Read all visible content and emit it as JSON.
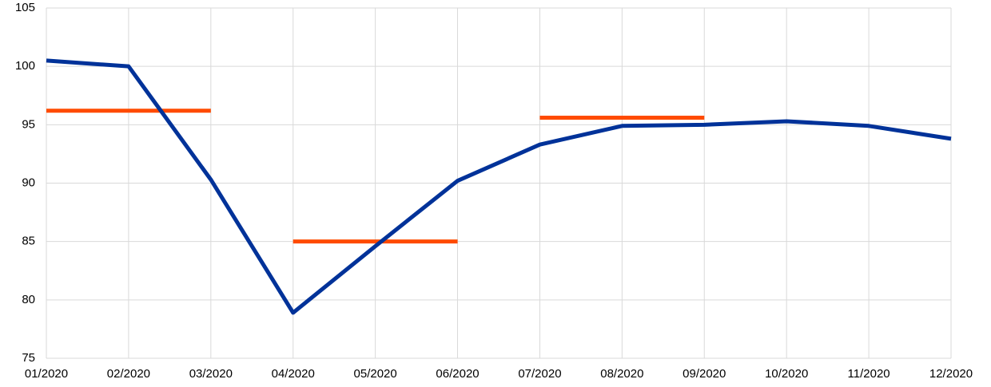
{
  "chart_data": {
    "type": "line",
    "categories": [
      "01/2020",
      "02/2020",
      "03/2020",
      "04/2020",
      "05/2020",
      "06/2020",
      "07/2020",
      "08/2020",
      "09/2020",
      "10/2020",
      "11/2020",
      "12/2020"
    ],
    "series": [
      {
        "color": "#003299",
        "values": [
          100.5,
          100.0,
          90.3,
          78.9,
          84.6,
          90.2,
          93.3,
          94.9,
          95.0,
          95.3,
          94.9,
          93.8
        ]
      }
    ],
    "segments": [
      {
        "from": "01/2020",
        "to": "03/2020",
        "value": 96.2,
        "color": "#ff4b00"
      },
      {
        "from": "04/2020",
        "to": "06/2020",
        "value": 85.0,
        "color": "#ff4b00"
      },
      {
        "from": "07/2020",
        "to": "09/2020",
        "value": 95.6,
        "color": "#ff4b00"
      }
    ],
    "ylim": [
      75,
      105
    ],
    "yticks": [
      75,
      80,
      85,
      90,
      95,
      100,
      105
    ],
    "grid": true
  }
}
